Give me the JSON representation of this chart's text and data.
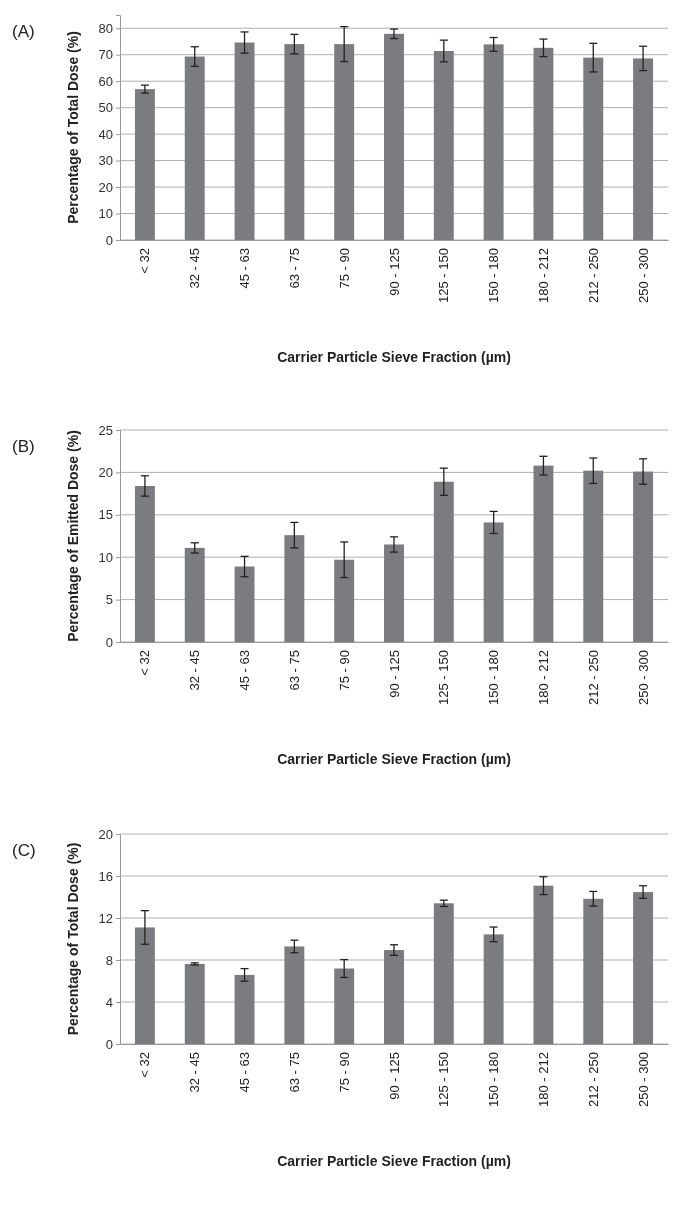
{
  "chart_data": [
    {
      "type": "bar",
      "title": "(A)",
      "xlabel": "Carrier Particle Sieve Fraction (µm)",
      "ylabel": "Percentage of Total Dose (%)",
      "categories": [
        "< 32",
        "32 - 45",
        "45 - 63",
        "63 - 75",
        "75 - 90",
        "90 - 125",
        "125 - 150",
        "150 - 180",
        "180 - 212",
        "212 - 250",
        "250 - 300"
      ],
      "color": "#7b7c80",
      "ylim": [
        0,
        85
      ],
      "yticks": [
        0,
        10,
        20,
        30,
        40,
        50,
        60,
        70,
        80
      ],
      "grid": "y",
      "values": [
        57,
        69.3,
        74.6,
        74,
        74,
        77.9,
        71.4,
        73.9,
        72.6,
        68.9,
        68.6
      ],
      "errors": [
        1.5,
        3.7,
        4,
        3.7,
        6.6,
        1.8,
        4.1,
        2.6,
        3.3,
        5.4,
        4.6
      ]
    },
    {
      "type": "bar",
      "title": "(B)",
      "xlabel": "Carrier Particle Sieve Fraction (µm)",
      "ylabel": "Percentage of Emitted Dose (%)",
      "categories": [
        "< 32",
        "32 - 45",
        "45 - 63",
        "63 - 75",
        "75 - 90",
        "90 - 125",
        "125 - 150",
        "150 - 180",
        "180 - 212",
        "212 - 250",
        "250 - 300"
      ],
      "color": "#7b7c80",
      "ylim": [
        0,
        25
      ],
      "yticks": [
        0,
        5,
        10,
        15,
        20,
        25
      ],
      "grid": "y",
      "values": [
        18.4,
        11.1,
        8.9,
        12.6,
        9.7,
        11.5,
        18.9,
        14.1,
        20.8,
        20.2,
        20.1
      ],
      "errors": [
        1.2,
        0.6,
        1.2,
        1.5,
        2.1,
        0.9,
        1.6,
        1.3,
        1.1,
        1.5,
        1.5
      ]
    },
    {
      "type": "bar",
      "title": "(C)",
      "xlabel": "Carrier Particle Sieve Fraction (µm)",
      "ylabel": "Percentage of Total Dose (%)",
      "categories": [
        "< 32",
        "32 - 45",
        "45 - 63",
        "63 - 75",
        "75 - 90",
        "90 - 125",
        "125 - 150",
        "150 - 180",
        "180 - 212",
        "212 - 250",
        "250 - 300"
      ],
      "color": "#7b7c80",
      "ylim": [
        0,
        20
      ],
      "yticks": [
        0,
        4,
        8,
        12,
        16,
        20
      ],
      "grid": "y",
      "values": [
        11.1,
        7.63,
        6.58,
        9.29,
        7.19,
        8.95,
        13.4,
        10.44,
        15.08,
        13.83,
        14.47
      ],
      "errors": [
        1.6,
        0.1,
        0.6,
        0.6,
        0.85,
        0.5,
        0.3,
        0.7,
        0.85,
        0.7,
        0.6
      ]
    }
  ]
}
